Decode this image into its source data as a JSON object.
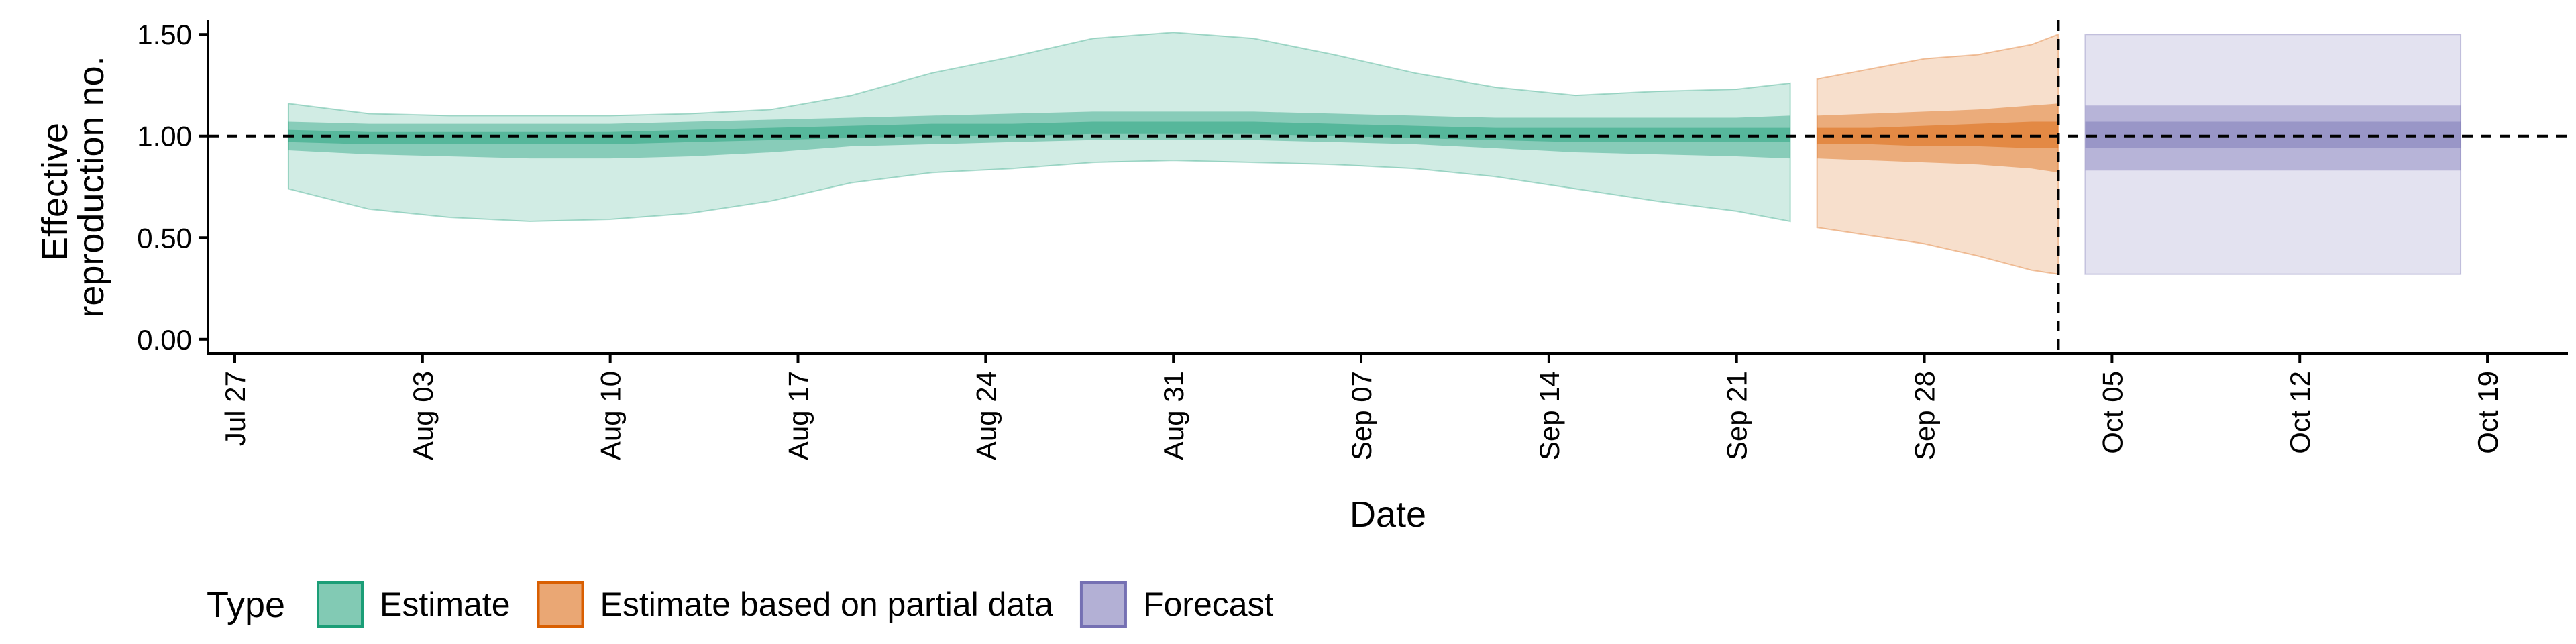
{
  "chart_data": {
    "type": "area",
    "xlabel": "Date",
    "ylabel_lines": [
      "Effective",
      "reproduction no."
    ],
    "x_ticks": [
      {
        "date": "2020-07-27",
        "label": "Jul 27"
      },
      {
        "date": "2020-08-03",
        "label": "Aug 03"
      },
      {
        "date": "2020-08-10",
        "label": "Aug 10"
      },
      {
        "date": "2020-08-17",
        "label": "Aug 17"
      },
      {
        "date": "2020-08-24",
        "label": "Aug 24"
      },
      {
        "date": "2020-08-31",
        "label": "Aug 31"
      },
      {
        "date": "2020-09-07",
        "label": "Sep 07"
      },
      {
        "date": "2020-09-14",
        "label": "Sep 14"
      },
      {
        "date": "2020-09-21",
        "label": "Sep 21"
      },
      {
        "date": "2020-09-28",
        "label": "Sep 28"
      },
      {
        "date": "2020-10-05",
        "label": "Oct 05"
      },
      {
        "date": "2020-10-12",
        "label": "Oct 12"
      },
      {
        "date": "2020-10-19",
        "label": "Oct 19"
      }
    ],
    "xlim": [
      "2020-07-26",
      "2020-10-22"
    ],
    "y_ticks": [
      {
        "value": 0.0,
        "label": "0.00"
      },
      {
        "value": 0.5,
        "label": "0.50"
      },
      {
        "value": 1.0,
        "label": "1.00"
      },
      {
        "value": 1.5,
        "label": "1.50"
      }
    ],
    "ylim": [
      -0.07,
      1.57
    ],
    "reference_line_y": 1.0,
    "vertical_line_x": "2020-10-03",
    "legend": {
      "title": "Type",
      "position": "bottom",
      "entries": [
        {
          "label": "Estimate",
          "fill": "#1b9e77",
          "border": "#1b9e77"
        },
        {
          "label": "Estimate based on partial data",
          "fill": "#d95f02",
          "border": "#d95f02"
        },
        {
          "label": "Forecast",
          "fill": "#7570b3",
          "border": "#7570b3"
        }
      ]
    },
    "series": [
      {
        "name": "Estimate",
        "color": "#1b9e77",
        "points": [
          {
            "x": "2020-07-29",
            "lo90": 0.74,
            "hi90": 1.16,
            "lo50": 0.93,
            "hi50": 1.07,
            "lo20": 0.97,
            "hi20": 1.03
          },
          {
            "x": "2020-08-01",
            "lo90": 0.64,
            "hi90": 1.11,
            "lo50": 0.91,
            "hi50": 1.06,
            "lo20": 0.96,
            "hi20": 1.02
          },
          {
            "x": "2020-08-04",
            "lo90": 0.6,
            "hi90": 1.1,
            "lo50": 0.9,
            "hi50": 1.06,
            "lo20": 0.96,
            "hi20": 1.02
          },
          {
            "x": "2020-08-07",
            "lo90": 0.58,
            "hi90": 1.1,
            "lo50": 0.89,
            "hi50": 1.06,
            "lo20": 0.96,
            "hi20": 1.02
          },
          {
            "x": "2020-08-10",
            "lo90": 0.59,
            "hi90": 1.1,
            "lo50": 0.89,
            "hi50": 1.06,
            "lo20": 0.96,
            "hi20": 1.02
          },
          {
            "x": "2020-08-13",
            "lo90": 0.62,
            "hi90": 1.11,
            "lo50": 0.9,
            "hi50": 1.07,
            "lo20": 0.97,
            "hi20": 1.03
          },
          {
            "x": "2020-08-16",
            "lo90": 0.68,
            "hi90": 1.13,
            "lo50": 0.92,
            "hi50": 1.08,
            "lo20": 0.98,
            "hi20": 1.04
          },
          {
            "x": "2020-08-19",
            "lo90": 0.77,
            "hi90": 1.2,
            "lo50": 0.95,
            "hi50": 1.09,
            "lo20": 0.99,
            "hi20": 1.05
          },
          {
            "x": "2020-08-22",
            "lo90": 0.82,
            "hi90": 1.31,
            "lo50": 0.96,
            "hi50": 1.1,
            "lo20": 1.0,
            "hi20": 1.06
          },
          {
            "x": "2020-08-25",
            "lo90": 0.84,
            "hi90": 1.39,
            "lo50": 0.97,
            "hi50": 1.11,
            "lo20": 1.0,
            "hi20": 1.06
          },
          {
            "x": "2020-08-28",
            "lo90": 0.87,
            "hi90": 1.48,
            "lo50": 0.98,
            "hi50": 1.12,
            "lo20": 1.01,
            "hi20": 1.07
          },
          {
            "x": "2020-08-31",
            "lo90": 0.88,
            "hi90": 1.51,
            "lo50": 0.98,
            "hi50": 1.12,
            "lo20": 1.01,
            "hi20": 1.07
          },
          {
            "x": "2020-09-03",
            "lo90": 0.87,
            "hi90": 1.48,
            "lo50": 0.98,
            "hi50": 1.12,
            "lo20": 1.01,
            "hi20": 1.07
          },
          {
            "x": "2020-09-06",
            "lo90": 0.86,
            "hi90": 1.4,
            "lo50": 0.97,
            "hi50": 1.11,
            "lo20": 1.0,
            "hi20": 1.06
          },
          {
            "x": "2020-09-09",
            "lo90": 0.84,
            "hi90": 1.31,
            "lo50": 0.96,
            "hi50": 1.1,
            "lo20": 0.99,
            "hi20": 1.05
          },
          {
            "x": "2020-09-12",
            "lo90": 0.8,
            "hi90": 1.24,
            "lo50": 0.94,
            "hi50": 1.09,
            "lo20": 0.98,
            "hi20": 1.04
          },
          {
            "x": "2020-09-15",
            "lo90": 0.74,
            "hi90": 1.2,
            "lo50": 0.92,
            "hi50": 1.09,
            "lo20": 0.97,
            "hi20": 1.04
          },
          {
            "x": "2020-09-18",
            "lo90": 0.68,
            "hi90": 1.22,
            "lo50": 0.91,
            "hi50": 1.09,
            "lo20": 0.97,
            "hi20": 1.04
          },
          {
            "x": "2020-09-21",
            "lo90": 0.63,
            "hi90": 1.23,
            "lo50": 0.9,
            "hi50": 1.09,
            "lo20": 0.97,
            "hi20": 1.04
          },
          {
            "x": "2020-09-23",
            "lo90": 0.58,
            "hi90": 1.26,
            "lo50": 0.89,
            "hi50": 1.1,
            "lo20": 0.97,
            "hi20": 1.04
          }
        ]
      },
      {
        "name": "Estimate based on partial data",
        "color": "#d95f02",
        "points": [
          {
            "x": "2020-09-24",
            "lo90": 0.55,
            "hi90": 1.28,
            "lo50": 0.89,
            "hi50": 1.1,
            "lo20": 0.96,
            "hi20": 1.04
          },
          {
            "x": "2020-09-26",
            "lo90": 0.51,
            "hi90": 1.33,
            "lo50": 0.88,
            "hi50": 1.11,
            "lo20": 0.96,
            "hi20": 1.04
          },
          {
            "x": "2020-09-28",
            "lo90": 0.47,
            "hi90": 1.38,
            "lo50": 0.87,
            "hi50": 1.12,
            "lo20": 0.95,
            "hi20": 1.05
          },
          {
            "x": "2020-09-30",
            "lo90": 0.41,
            "hi90": 1.4,
            "lo50": 0.86,
            "hi50": 1.13,
            "lo20": 0.95,
            "hi20": 1.06
          },
          {
            "x": "2020-10-02",
            "lo90": 0.34,
            "hi90": 1.45,
            "lo50": 0.84,
            "hi50": 1.15,
            "lo20": 0.94,
            "hi20": 1.07
          },
          {
            "x": "2020-10-03",
            "lo90": 0.32,
            "hi90": 1.5,
            "lo50": 0.82,
            "hi50": 1.16,
            "lo20": 0.94,
            "hi20": 1.07
          }
        ]
      },
      {
        "name": "Forecast",
        "color": "#7570b3",
        "points": [
          {
            "x": "2020-10-04",
            "lo90": 0.32,
            "hi90": 1.5,
            "lo50": 0.83,
            "hi50": 1.15,
            "lo20": 0.94,
            "hi20": 1.07
          },
          {
            "x": "2020-10-18",
            "lo90": 0.32,
            "hi90": 1.5,
            "lo50": 0.83,
            "hi50": 1.15,
            "lo20": 0.94,
            "hi20": 1.07
          }
        ]
      }
    ]
  }
}
